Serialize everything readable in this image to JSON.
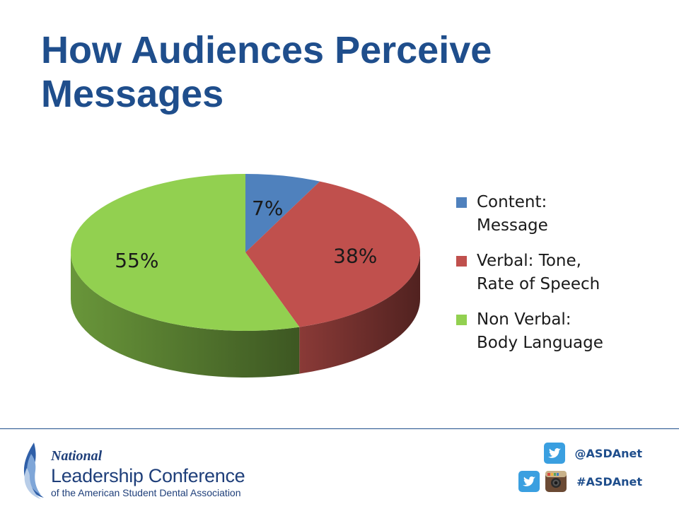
{
  "slide": {
    "title": "How Audiences Perceive Messages"
  },
  "chart_data": {
    "type": "pie",
    "style": "3d",
    "title": "",
    "slices": [
      {
        "label": "Content: Message",
        "value": 7,
        "display": "7%",
        "color": "#4f81bd"
      },
      {
        "label": "Verbal: Tone, Rate of Speech",
        "value": 38,
        "display": "38%",
        "color": "#c0504d"
      },
      {
        "label": "Non Verbal: Body Language",
        "value": 55,
        "display": "55%",
        "color": "#92d050"
      }
    ],
    "legend_position": "right"
  },
  "legend": {
    "items": [
      {
        "text": "Content:\nMessage",
        "color": "#4f81bd"
      },
      {
        "text": "Verbal: Tone,\nRate of Speech",
        "color": "#c0504d"
      },
      {
        "text": "Non Verbal:\nBody Language",
        "color": "#92d050"
      }
    ]
  },
  "footer": {
    "logo": {
      "line1": "National",
      "line2": "Leadership Conference",
      "line3": "of the American Student Dental Association"
    },
    "twitter_handle": "@ASDAnet",
    "hashtag": "#ASDAnet",
    "icons": [
      "twitter-icon",
      "instagram-icon"
    ]
  },
  "colors": {
    "title": "#1f4e8c",
    "rule": "#1f4e8c"
  }
}
